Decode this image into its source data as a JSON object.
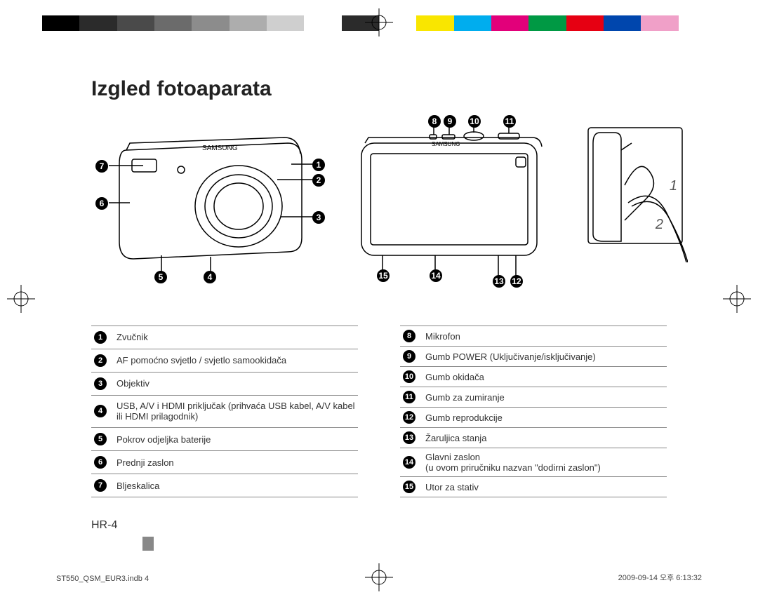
{
  "colorbar": [
    "#000000",
    "#2b2b2b",
    "#4a4a4a",
    "#6b6b6b",
    "#8c8c8c",
    "#adadad",
    "#cfcfcf",
    "#ffffff",
    "#2b2b2b",
    "#ffffff",
    "#f9e600",
    "#00adee",
    "#e2007a",
    "#009944",
    "#e60012",
    "#0046ad",
    "#f0a0c8",
    "#ffffff"
  ],
  "title": "Izgled fotoaparata",
  "front_callouts": {
    "1": "1",
    "2": "2",
    "3": "3",
    "4": "4",
    "5": "5",
    "6": "6",
    "7": "7"
  },
  "back_callouts": {
    "8": "8",
    "9": "9",
    "10": "10",
    "11": "11",
    "12": "12",
    "13": "13",
    "14": "14",
    "15": "15"
  },
  "strap": {
    "1": "1",
    "2": "2"
  },
  "table_left": [
    {
      "n": "1",
      "t": "Zvučnik"
    },
    {
      "n": "2",
      "t": "AF pomoćno svjetlo / svjetlo samookidača"
    },
    {
      "n": "3",
      "t": "Objektiv"
    },
    {
      "n": "4",
      "t": "USB, A/V i HDMI priključak (prihvaća USB kabel, A/V kabel ili HDMI prilagodnik)"
    },
    {
      "n": "5",
      "t": "Pokrov odjeljka baterije"
    },
    {
      "n": "6",
      "t": "Prednji zaslon"
    },
    {
      "n": "7",
      "t": "Bljeskalica"
    }
  ],
  "table_right": [
    {
      "n": "8",
      "t": "Mikrofon"
    },
    {
      "n": "9",
      "t": "Gumb POWER (Uključivanje/isključivanje)"
    },
    {
      "n": "10",
      "t": "Gumb okidača"
    },
    {
      "n": "11",
      "t": "Gumb za zumiranje"
    },
    {
      "n": "12",
      "t": "Gumb reprodukcije"
    },
    {
      "n": "13",
      "t": "Žaruljica stanja"
    },
    {
      "n": "14",
      "t": "Glavni zaslon\n(u ovom priručniku nazvan \"dodirni zaslon\")"
    },
    {
      "n": "15",
      "t": "Utor za stativ"
    }
  ],
  "page_number": "HR-4",
  "footer_left": "ST550_QSM_EUR3.indb   4",
  "footer_right": "2009-09-14   오후 6:13:32"
}
